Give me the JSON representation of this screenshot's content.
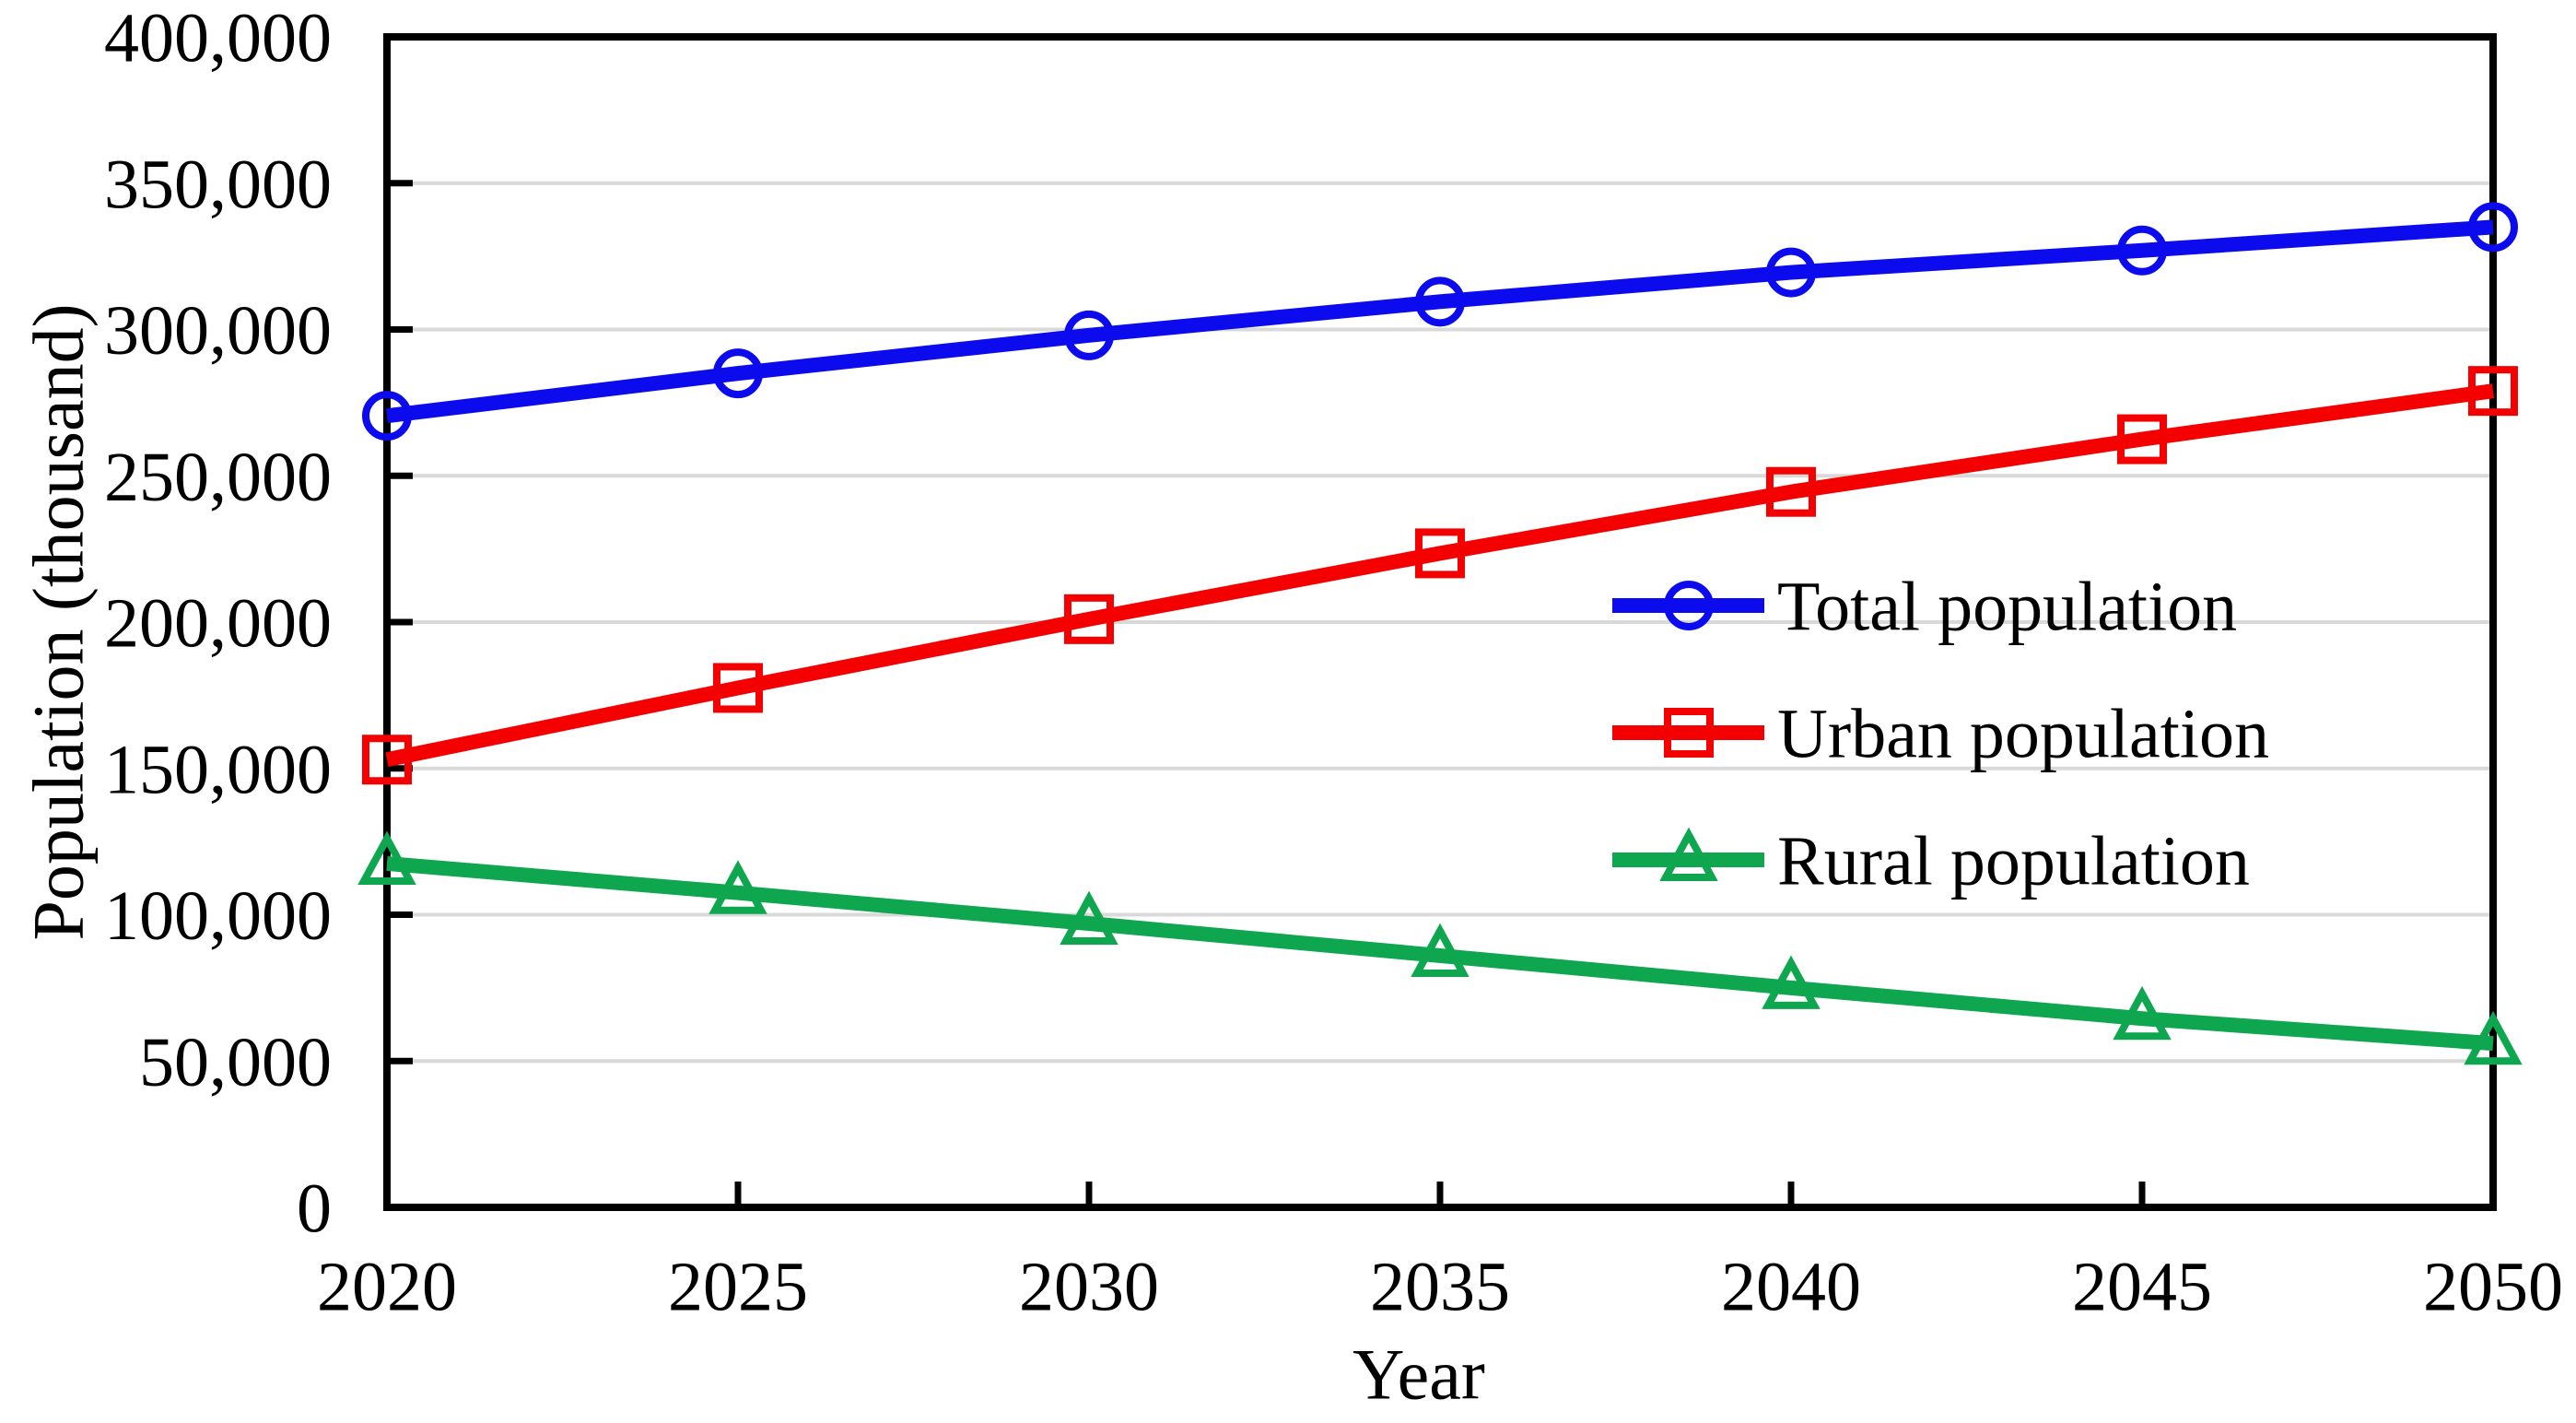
{
  "figure": {
    "background": "#ffffff",
    "gridline_color": "#d9d9d9",
    "axis_color": "#000000",
    "text_color": "#000000"
  },
  "chart_data": {
    "type": "line",
    "title": "",
    "xlabel": "Year",
    "ylabel": "Population (thousand)",
    "x": [
      2020,
      2025,
      2030,
      2035,
      2040,
      2045,
      2050
    ],
    "xlim": [
      2020,
      2050
    ],
    "ylim": [
      0,
      400000
    ],
    "y_tick_step": 50000,
    "grid": "horizontal-only",
    "legend_position": "inside-right-middle",
    "x_ticks": [
      {
        "value": 2020,
        "label": "2020"
      },
      {
        "value": 2025,
        "label": "2025"
      },
      {
        "value": 2030,
        "label": "2030"
      },
      {
        "value": 2035,
        "label": "2035"
      },
      {
        "value": 2040,
        "label": "2040"
      },
      {
        "value": 2045,
        "label": "2045"
      },
      {
        "value": 2050,
        "label": "2050"
      }
    ],
    "y_ticks": [
      {
        "value": 0,
        "label": "0"
      },
      {
        "value": 50000,
        "label": "50,000"
      },
      {
        "value": 100000,
        "label": "100,000"
      },
      {
        "value": 150000,
        "label": "150,000"
      },
      {
        "value": 200000,
        "label": "200,000"
      },
      {
        "value": 250000,
        "label": "250,000"
      },
      {
        "value": 300000,
        "label": "300,000"
      },
      {
        "value": 350000,
        "label": "350,000"
      },
      {
        "value": 400000,
        "label": "400,000"
      }
    ],
    "series": [
      {
        "name": "Total population",
        "marker": "circle",
        "color": "#0b0bee",
        "values": [
          270500,
          285000,
          298000,
          309500,
          319500,
          327000,
          335000
        ]
      },
      {
        "name": "Urban population",
        "marker": "square",
        "color": "#f40000",
        "values": [
          153000,
          177500,
          201000,
          223500,
          244500,
          262500,
          279000
        ]
      },
      {
        "name": "Rural population",
        "marker": "triangle",
        "color": "#0ea750",
        "values": [
          117500,
          107500,
          97000,
          86000,
          75000,
          64500,
          56000
        ]
      }
    ]
  }
}
